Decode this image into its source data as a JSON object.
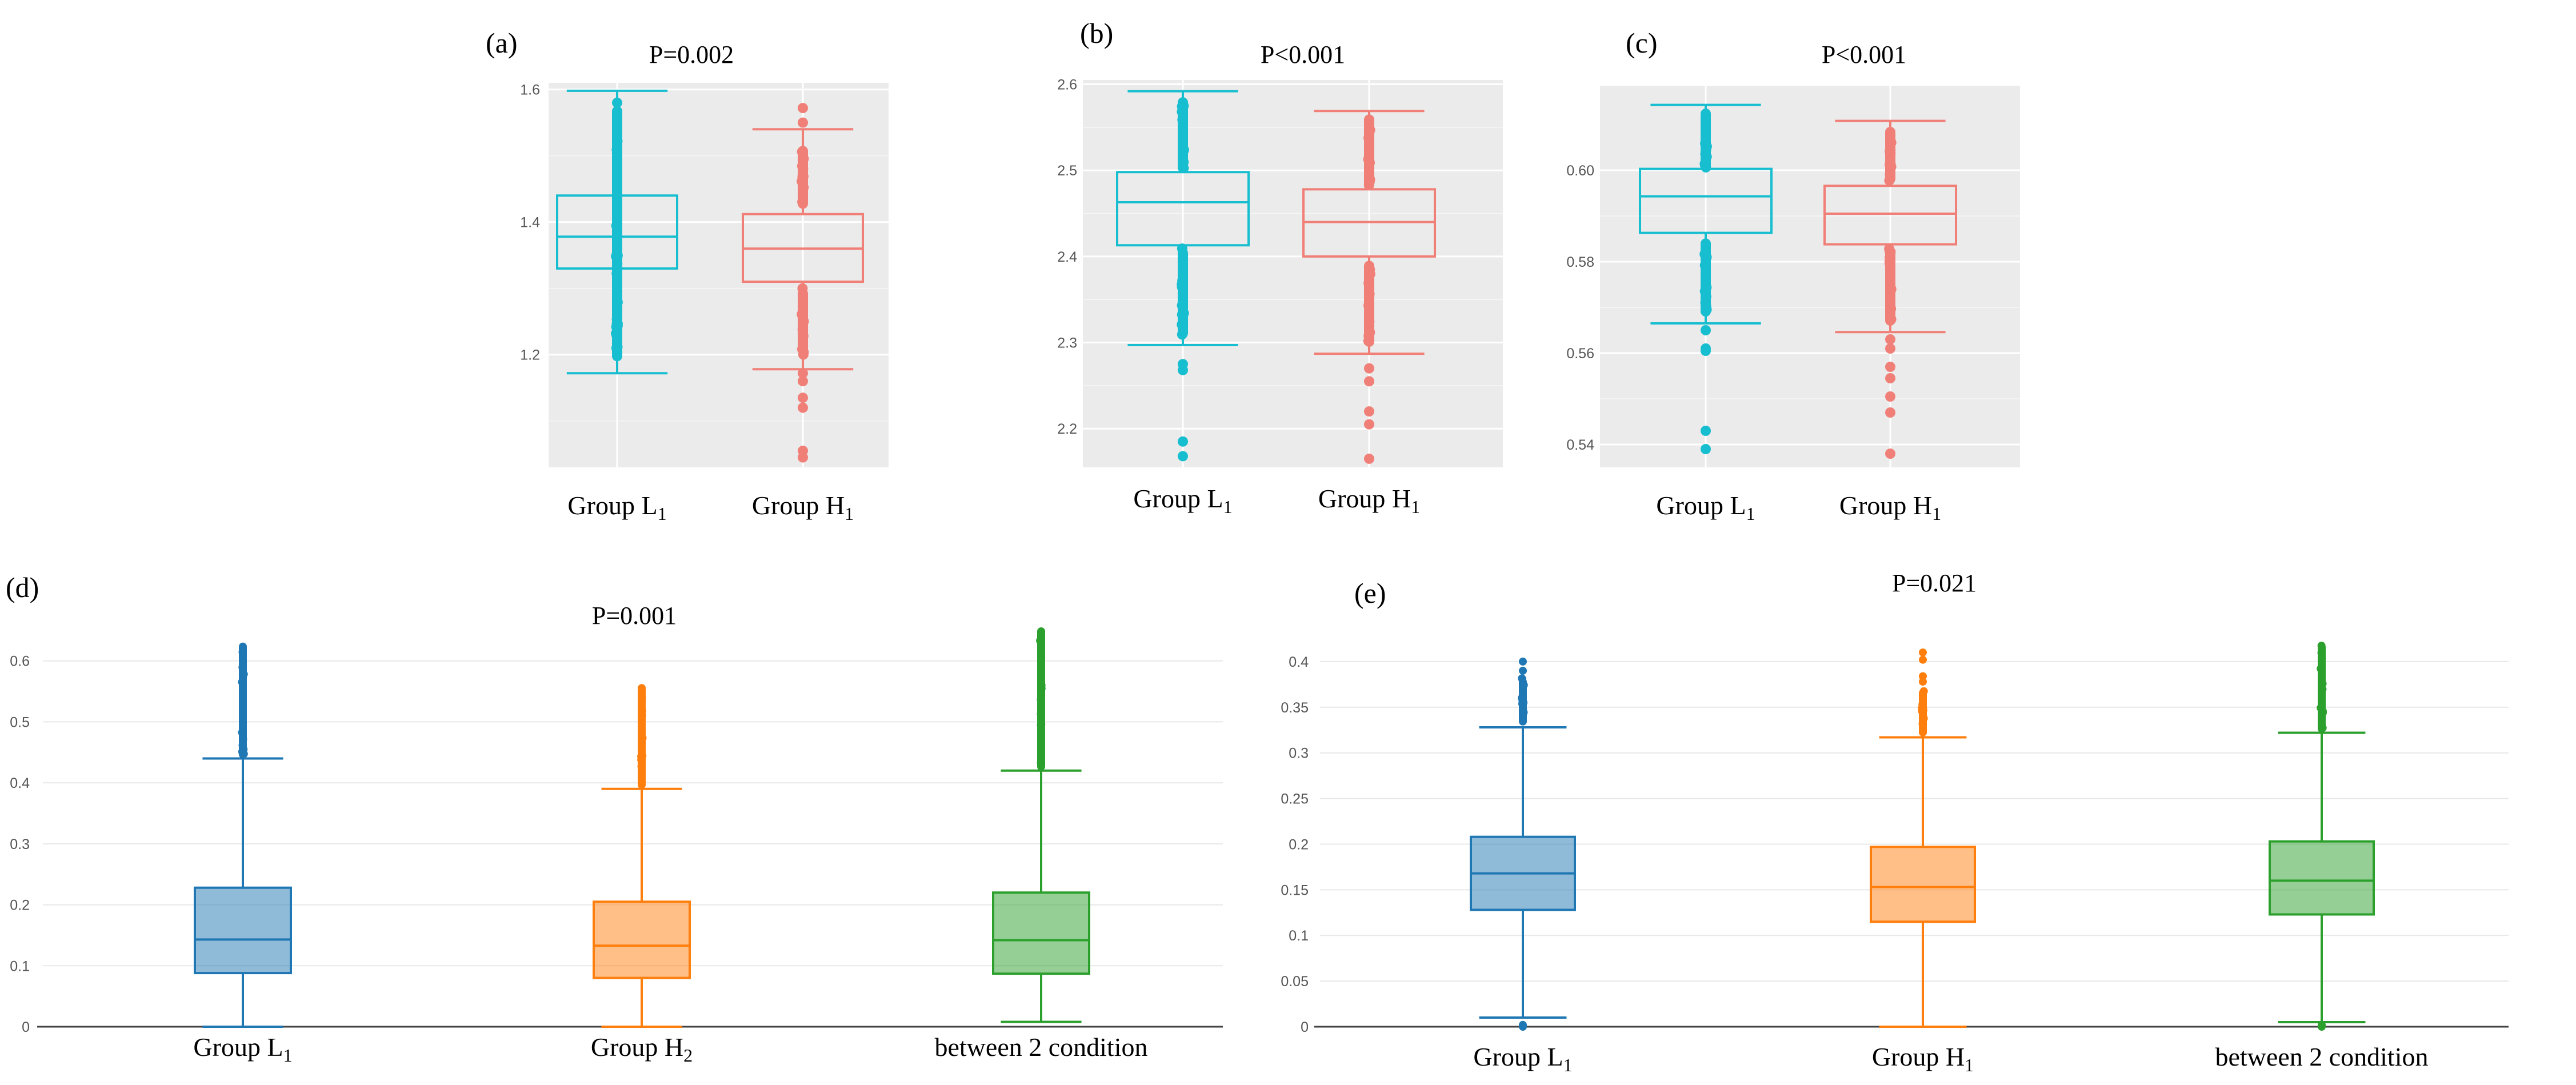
{
  "chart_data": [
    {
      "panel": "(a)",
      "type": "boxplot",
      "title": "P=0.002",
      "background": "gray",
      "ylim": [
        1.03,
        1.61
      ],
      "yticks": [
        1.2,
        1.4,
        1.6
      ],
      "ytick_labels": [
        "1.2",
        "1.4",
        "1.6"
      ],
      "categories": [
        "Group L1",
        "Group H1"
      ],
      "category_labels": [
        {
          "main": "Group L",
          "sub": "1"
        },
        {
          "main": "Group H",
          "sub": "1"
        }
      ],
      "boxes": [
        {
          "q1": 1.33,
          "median": 1.378,
          "q3": 1.44,
          "whisker_low": 1.172,
          "whisker_high": 1.598,
          "outliers_dense": [
            [
              1.19,
              1.25
            ],
            [
              1.245,
              1.575
            ]
          ],
          "outliers": [
            1.205,
            1.215,
            1.53,
            1.545,
            1.56,
            1.58
          ],
          "color": "#17becf"
        },
        {
          "q1": 1.31,
          "median": 1.36,
          "q3": 1.412,
          "whisker_low": 1.178,
          "whisker_high": 1.54,
          "outliers_dense": [
            [
              1.2,
              1.3
            ],
            [
              1.42,
              1.515
            ]
          ],
          "outliers": [
            1.045,
            1.055,
            1.12,
            1.135,
            1.16,
            1.172,
            1.55,
            1.572
          ],
          "color": "#f07f78"
        }
      ]
    },
    {
      "panel": "(b)",
      "type": "boxplot",
      "title": "P<0.001",
      "background": "gray",
      "ylim": [
        2.155,
        2.605
      ],
      "yticks": [
        2.2,
        2.3,
        2.4,
        2.5,
        2.6
      ],
      "ytick_labels": [
        "2.2",
        "2.3",
        "2.4",
        "2.5",
        "2.6"
      ],
      "categories": [
        "Group L1",
        "Group H1"
      ],
      "category_labels": [
        {
          "main": "Group L",
          "sub": "1"
        },
        {
          "main": "Group H",
          "sub": "1"
        }
      ],
      "boxes": [
        {
          "q1": 2.413,
          "median": 2.463,
          "q3": 2.498,
          "whisker_low": 2.297,
          "whisker_high": 2.592,
          "outliers_dense": [
            [
              2.305,
              2.41
            ],
            [
              2.5,
              2.585
            ]
          ],
          "outliers": [
            2.168,
            2.185,
            2.268,
            2.275
          ],
          "color": "#17becf"
        },
        {
          "q1": 2.4,
          "median": 2.44,
          "q3": 2.478,
          "whisker_low": 2.287,
          "whisker_high": 2.569,
          "outliers_dense": [
            [
              2.295,
              2.395
            ],
            [
              2.48,
              2.565
            ]
          ],
          "outliers": [
            2.165,
            2.205,
            2.22,
            2.255,
            2.27
          ],
          "color": "#f07f78"
        }
      ]
    },
    {
      "panel": "(c)",
      "type": "boxplot",
      "title": "P<0.001",
      "background": "gray",
      "ylim": [
        0.535,
        0.6185
      ],
      "yticks": [
        0.54,
        0.56,
        0.58,
        0.6
      ],
      "ytick_labels": [
        "0.54",
        "0.56",
        "0.58",
        "0.60"
      ],
      "categories": [
        "Group L1",
        "Group H1"
      ],
      "category_labels": [
        {
          "main": "Group L",
          "sub": "1"
        },
        {
          "main": "Group H",
          "sub": "1"
        }
      ],
      "boxes": [
        {
          "q1": 0.5863,
          "median": 0.5943,
          "q3": 0.6003,
          "whisker_low": 0.5665,
          "whisker_high": 0.6143,
          "outliers_dense": [
            [
              0.568,
              0.585
            ],
            [
              0.6,
              0.6135
            ]
          ],
          "outliers": [
            0.539,
            0.543,
            0.5605,
            0.561,
            0.565
          ],
          "color": "#17becf"
        },
        {
          "q1": 0.5838,
          "median": 0.5905,
          "q3": 0.5966,
          "whisker_low": 0.5646,
          "whisker_high": 0.6108,
          "outliers_dense": [
            [
              0.566,
              0.583
            ],
            [
              0.597,
              0.6095
            ]
          ],
          "outliers": [
            0.538,
            0.547,
            0.5505,
            0.5545,
            0.557,
            0.561,
            0.563
          ],
          "color": "#f07f78"
        }
      ]
    },
    {
      "panel": "(d)",
      "type": "boxplot",
      "title": "P=0.001",
      "background": "white",
      "ylim": [
        0,
        0.655
      ],
      "yticks": [
        0,
        0.1,
        0.2,
        0.3,
        0.4,
        0.5,
        0.6
      ],
      "ytick_labels": [
        "0",
        "0.1",
        "0.2",
        "0.3",
        "0.4",
        "0.5",
        "0.6"
      ],
      "categories": [
        "Group L1",
        "Group H2",
        "between 2 condition"
      ],
      "category_labels": [
        {
          "main": "Group L",
          "sub": "1"
        },
        {
          "main": "Group H",
          "sub": "2"
        },
        {
          "main": "between 2 condition",
          "sub": ""
        }
      ],
      "boxes": [
        {
          "q1": 0.088,
          "median": 0.143,
          "q3": 0.228,
          "whisker_low": 0.0,
          "whisker_high": 0.44,
          "outliers_dense": [
            [
              0.44,
              0.63
            ]
          ],
          "outliers": [],
          "color": "#1f77b4"
        },
        {
          "q1": 0.08,
          "median": 0.133,
          "q3": 0.205,
          "whisker_low": 0.0,
          "whisker_high": 0.39,
          "outliers_dense": [
            [
              0.39,
              0.562
            ]
          ],
          "outliers": [],
          "color": "#ff7f0e"
        },
        {
          "q1": 0.087,
          "median": 0.142,
          "q3": 0.22,
          "whisker_low": 0.008,
          "whisker_high": 0.42,
          "outliers_dense": [
            [
              0.42,
              0.655
            ]
          ],
          "outliers": [],
          "color": "#2ca02c"
        }
      ]
    },
    {
      "panel": "(e)",
      "type": "boxplot",
      "title": "P=0.021",
      "background": "white",
      "ylim": [
        0,
        0.43
      ],
      "yticks": [
        0,
        0.05,
        0.1,
        0.15,
        0.2,
        0.25,
        0.3,
        0.35,
        0.4
      ],
      "ytick_labels": [
        "0",
        "0.05",
        "0.1",
        "0.15",
        "0.2",
        "0.25",
        "0.3",
        "0.35",
        "0.4"
      ],
      "categories": [
        "Group L1",
        "Group H1",
        "between 2 condition"
      ],
      "category_labels": [
        {
          "main": "Group L",
          "sub": "1"
        },
        {
          "main": "Group H",
          "sub": "1"
        },
        {
          "main": "between 2 condition",
          "sub": ""
        }
      ],
      "boxes": [
        {
          "q1": 0.128,
          "median": 0.168,
          "q3": 0.208,
          "whisker_low": 0.01,
          "whisker_high": 0.328,
          "outliers_dense": [
            [
              0.33,
              0.382
            ]
          ],
          "outliers": [
            0.0,
            0.002,
            0.39,
            0.4
          ],
          "color": "#1f77b4"
        },
        {
          "q1": 0.115,
          "median": 0.153,
          "q3": 0.197,
          "whisker_low": 0.0,
          "whisker_high": 0.317,
          "outliers_dense": [
            [
              0.318,
              0.37
            ]
          ],
          "outliers": [
            0.378,
            0.384,
            0.402,
            0.41
          ],
          "color": "#ff7f0e"
        },
        {
          "q1": 0.123,
          "median": 0.16,
          "q3": 0.203,
          "whisker_low": 0.005,
          "whisker_high": 0.322,
          "outliers_dense": [
            [
              0.322,
              0.42
            ]
          ],
          "outliers": [
            0.0,
            0.002
          ],
          "color": "#2ca02c"
        }
      ]
    }
  ]
}
